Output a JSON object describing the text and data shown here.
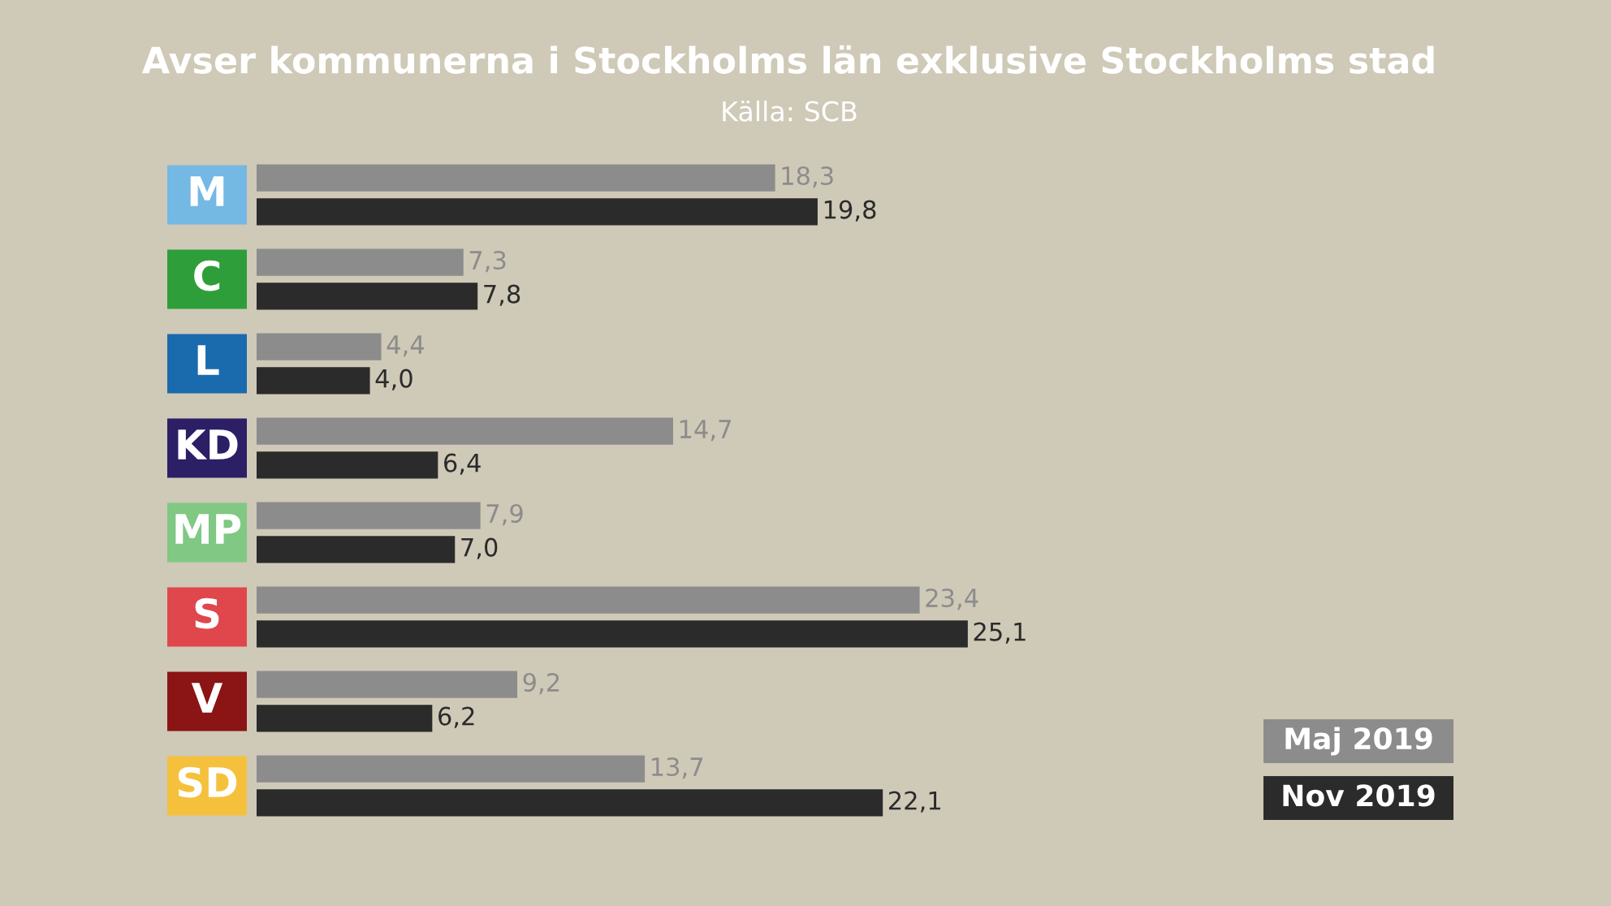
{
  "chart_data": {
    "type": "bar",
    "orientation": "horizontal",
    "title": "Avser kommunerna i Stockholms län exklusive Stockholms stad",
    "subtitle": "Källa: SCB",
    "categories": [
      "M",
      "C",
      "L",
      "KD",
      "MP",
      "S",
      "V",
      "SD"
    ],
    "series": [
      {
        "name": "Maj 2019",
        "color": "#8c8c8c",
        "values": [
          18.3,
          7.3,
          4.4,
          14.7,
          7.9,
          23.4,
          9.2,
          13.7
        ],
        "value_labels": [
          "18,3",
          "7,3",
          "4,4",
          "14,7",
          "7,9",
          "23,4",
          "9,2",
          "13,7"
        ]
      },
      {
        "name": "Nov 2019",
        "color": "#2b2b2b",
        "values": [
          19.8,
          7.8,
          4.0,
          6.4,
          7.0,
          25.1,
          6.2,
          22.1
        ],
        "value_labels": [
          "19,8",
          "7,8",
          "4,0",
          "6,4",
          "7,0",
          "25,1",
          "6,2",
          "22,1"
        ]
      }
    ],
    "xlim": [
      0,
      47.8
    ],
    "legend": "bottom right"
  }
}
